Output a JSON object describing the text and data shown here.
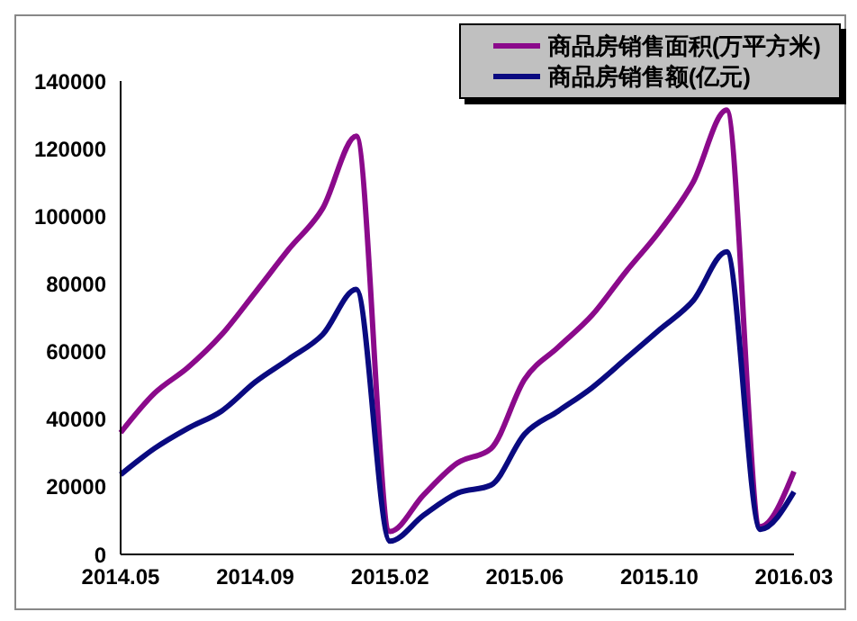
{
  "chart_data": {
    "type": "line",
    "categories": [
      "2014.05",
      null,
      null,
      null,
      "2014.09",
      null,
      null,
      null,
      "2015.02",
      null,
      null,
      null,
      "2015.06",
      null,
      null,
      null,
      "2015.10",
      null,
      null,
      null,
      "2016.03"
    ],
    "series": [
      {
        "name": "商品房销售面积(万平方米)",
        "color": "#8b0a8b",
        "values": [
          36000,
          47600,
          55300,
          65000,
          77500,
          90300,
          102300,
          123700,
          6800,
          17600,
          27000,
          31300,
          51800,
          61300,
          70700,
          83500,
          95500,
          110000,
          131400,
          8200,
          24500
        ]
      },
      {
        "name": "商品房销售额(亿元)",
        "color": "#0a0a80",
        "values": [
          23600,
          31300,
          37300,
          42400,
          51000,
          57800,
          65000,
          78400,
          3900,
          11600,
          18100,
          20500,
          35600,
          42400,
          49300,
          57800,
          66400,
          75000,
          89500,
          7400,
          18500
        ]
      }
    ],
    "ylim": [
      0,
      140000
    ],
    "yticks": [
      0,
      20000,
      40000,
      60000,
      80000,
      100000,
      120000,
      140000
    ],
    "grid": false,
    "legend": "top right",
    "marker": "none",
    "line_style": "solid"
  }
}
